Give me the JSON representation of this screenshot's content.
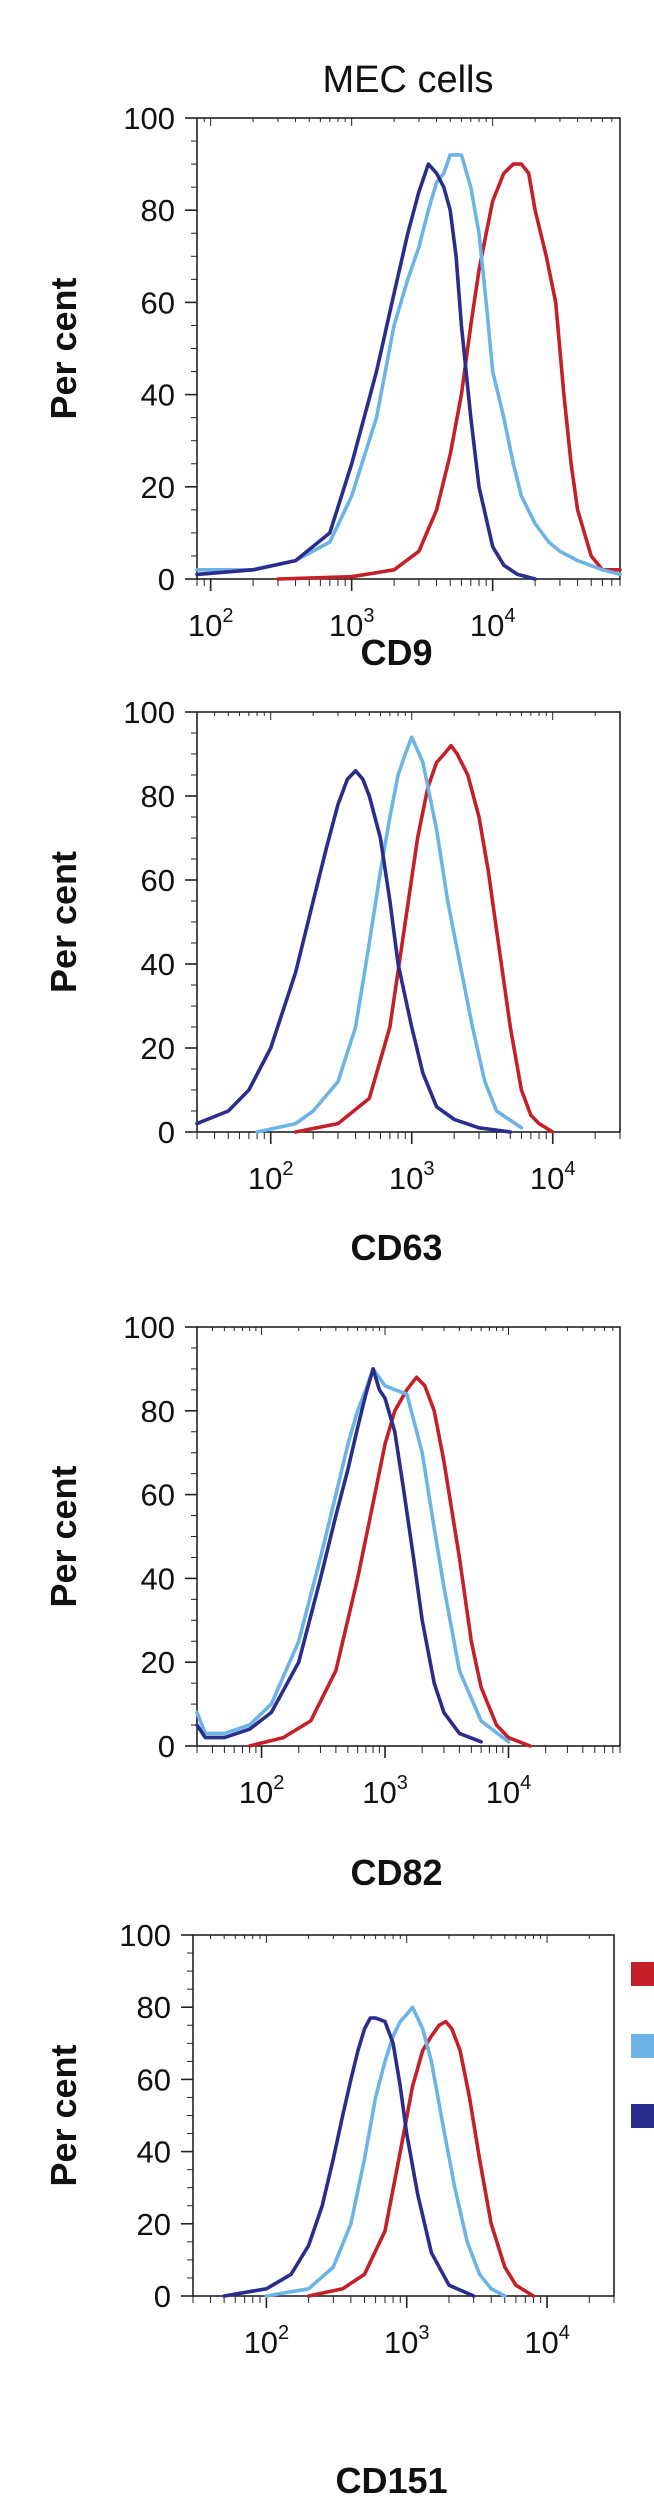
{
  "figure_title": "MEC cells",
  "colors": {
    "red": "#c3202a",
    "light_blue": "#6db4e6",
    "dark_blue": "#2a2d8c"
  },
  "chart_data": [
    {
      "type": "line",
      "xlabel": "CD9",
      "ylabel": "Per cent",
      "x_scale": "log",
      "xlim": [
        80,
        80000
      ],
      "ylim": [
        0,
        100
      ],
      "y_ticks": [
        "0",
        "20",
        "40",
        "60",
        "80",
        "100"
      ],
      "x_ticks": [
        {
          "base": "10",
          "exp": "2",
          "value": 100
        },
        {
          "base": "10",
          "exp": "3",
          "value": 1000
        },
        {
          "base": "10",
          "exp": "4",
          "value": 10000
        }
      ],
      "grid": false,
      "series": [
        {
          "color": "red",
          "x": [
            300,
            1000,
            2000,
            3000,
            4000,
            5000,
            6000,
            7000,
            8000,
            9000,
            10000,
            12000,
            14000,
            16000,
            18000,
            20000,
            24000,
            28000,
            32000,
            36000,
            40000,
            50000,
            60000,
            80000
          ],
          "values": [
            0,
            0.5,
            2,
            6,
            15,
            27,
            40,
            55,
            67,
            75,
            82,
            88,
            90,
            90,
            88,
            80,
            70,
            60,
            40,
            25,
            15,
            5,
            2,
            2
          ]
        },
        {
          "color": "light_blue",
          "x": [
            80,
            200,
            400,
            700,
            1000,
            1500,
            2000,
            2500,
            3000,
            3500,
            4000,
            4500,
            5000,
            6000,
            7000,
            8000,
            9000,
            10000,
            12000,
            14000,
            16000,
            20000,
            25000,
            30000,
            40000,
            60000,
            80000
          ],
          "values": [
            2,
            2,
            4,
            8,
            18,
            35,
            55,
            65,
            72,
            80,
            86,
            88,
            92,
            92,
            85,
            75,
            60,
            45,
            35,
            25,
            18,
            12,
            8,
            6,
            4,
            2,
            1
          ]
        },
        {
          "color": "dark_blue",
          "x": [
            80,
            200,
            400,
            700,
            1000,
            1500,
            2000,
            2500,
            3000,
            3500,
            4000,
            4500,
            5000,
            5500,
            6000,
            7000,
            8000,
            10000,
            12000,
            15000,
            20000
          ],
          "values": [
            1,
            2,
            4,
            10,
            25,
            45,
            62,
            75,
            84,
            90,
            88,
            85,
            80,
            70,
            55,
            35,
            20,
            7,
            3,
            1,
            0
          ]
        }
      ]
    },
    {
      "type": "line",
      "xlabel": "CD63",
      "ylabel": "Per cent",
      "x_scale": "log",
      "xlim": [
        30,
        30000
      ],
      "ylim": [
        0,
        100
      ],
      "y_ticks": [
        "0",
        "20",
        "40",
        "60",
        "80",
        "100"
      ],
      "x_ticks": [
        {
          "base": "10",
          "exp": "2",
          "value": 100
        },
        {
          "base": "10",
          "exp": "3",
          "value": 1000
        },
        {
          "base": "10",
          "exp": "4",
          "value": 10000
        }
      ],
      "grid": false,
      "series": [
        {
          "color": "red",
          "x": [
            150,
            300,
            500,
            700,
            900,
            1100,
            1300,
            1500,
            1700,
            1900,
            2100,
            2500,
            3000,
            3500,
            4000,
            5000,
            6000,
            7000,
            8000,
            10000
          ],
          "values": [
            0,
            2,
            8,
            25,
            50,
            70,
            82,
            88,
            90,
            92,
            90,
            85,
            75,
            62,
            48,
            25,
            10,
            4,
            2,
            0
          ]
        },
        {
          "color": "light_blue",
          "x": [
            80,
            150,
            200,
            300,
            400,
            500,
            600,
            700,
            800,
            900,
            1000,
            1200,
            1500,
            1800,
            2200,
            2700,
            3300,
            4000,
            6000
          ],
          "values": [
            0,
            2,
            5,
            12,
            25,
            45,
            62,
            75,
            85,
            90,
            94,
            88,
            72,
            55,
            40,
            25,
            12,
            5,
            1
          ]
        },
        {
          "color": "dark_blue",
          "x": [
            30,
            50,
            70,
            100,
            150,
            200,
            250,
            300,
            350,
            400,
            450,
            500,
            600,
            700,
            800,
            1000,
            1200,
            1500,
            2000,
            3000,
            5000
          ],
          "values": [
            2,
            5,
            10,
            20,
            38,
            55,
            68,
            78,
            84,
            86,
            84,
            80,
            70,
            55,
            40,
            25,
            14,
            6,
            3,
            1,
            0
          ]
        }
      ]
    },
    {
      "type": "line",
      "xlabel": "CD82",
      "ylabel": "Per cent",
      "x_scale": "log",
      "xlim": [
        30,
        80000
      ],
      "ylim": [
        0,
        100
      ],
      "y_ticks": [
        "0",
        "20",
        "40",
        "60",
        "80",
        "100"
      ],
      "x_ticks": [
        {
          "base": "10",
          "exp": "2",
          "value": 100
        },
        {
          "base": "10",
          "exp": "3",
          "value": 1000
        },
        {
          "base": "10",
          "exp": "4",
          "value": 10000
        }
      ],
      "grid": false,
      "series": [
        {
          "color": "red",
          "x": [
            80,
            150,
            250,
            400,
            600,
            800,
            1000,
            1200,
            1500,
            1800,
            2100,
            2500,
            3000,
            4000,
            5000,
            6000,
            8000,
            10000,
            15000
          ],
          "values": [
            0,
            2,
            6,
            18,
            40,
            58,
            72,
            80,
            85,
            88,
            86,
            80,
            68,
            45,
            25,
            14,
            5,
            2,
            0
          ]
        },
        {
          "color": "light_blue",
          "x": [
            30,
            35,
            50,
            80,
            120,
            200,
            300,
            400,
            500,
            600,
            700,
            800,
            1000,
            1200,
            1500,
            2000,
            2500,
            3000,
            4000,
            6000,
            10000
          ],
          "values": [
            8,
            3,
            3,
            5,
            10,
            25,
            45,
            60,
            72,
            80,
            85,
            90,
            86,
            85,
            84,
            70,
            52,
            38,
            18,
            6,
            1
          ]
        },
        {
          "color": "dark_blue",
          "x": [
            30,
            35,
            50,
            80,
            120,
            200,
            300,
            400,
            500,
            600,
            700,
            800,
            900,
            1000,
            1200,
            1400,
            1700,
            2000,
            2500,
            3000,
            4000,
            6000
          ],
          "values": [
            5,
            2,
            2,
            4,
            8,
            20,
            40,
            55,
            66,
            76,
            84,
            90,
            85,
            83,
            75,
            62,
            45,
            30,
            15,
            8,
            3,
            1
          ]
        }
      ]
    },
    {
      "type": "line",
      "xlabel": "CD151",
      "ylabel": "Per cent",
      "x_scale": "log",
      "xlim": [
        30,
        30000
      ],
      "ylim": [
        0,
        100
      ],
      "y_ticks": [
        "0",
        "20",
        "40",
        "60",
        "80",
        "100"
      ],
      "x_ticks": [
        {
          "base": "10",
          "exp": "2",
          "value": 100
        },
        {
          "base": "10",
          "exp": "3",
          "value": 1000
        },
        {
          "base": "10",
          "exp": "4",
          "value": 10000
        }
      ],
      "grid": false,
      "legend": {
        "position": "right",
        "entries": [
          {
            "color": "red",
            "label": ""
          },
          {
            "color": "light_blue",
            "label": ""
          },
          {
            "color": "dark_blue",
            "label": ""
          }
        ]
      },
      "series": [
        {
          "color": "red",
          "x": [
            200,
            350,
            500,
            700,
            900,
            1100,
            1300,
            1500,
            1700,
            1900,
            2100,
            2400,
            2800,
            3300,
            4000,
            5000,
            6000,
            8000
          ],
          "values": [
            0,
            2,
            6,
            18,
            40,
            58,
            68,
            72,
            75,
            76,
            74,
            68,
            55,
            38,
            20,
            8,
            3,
            0
          ]
        },
        {
          "color": "light_blue",
          "x": [
            100,
            200,
            300,
            400,
            500,
            600,
            700,
            800,
            900,
            1000,
            1100,
            1300,
            1500,
            1800,
            2200,
            2700,
            3300,
            4000,
            5000
          ],
          "values": [
            0,
            2,
            8,
            20,
            38,
            55,
            65,
            72,
            76,
            78,
            80,
            74,
            65,
            48,
            30,
            15,
            6,
            2,
            0
          ]
        },
        {
          "color": "dark_blue",
          "x": [
            50,
            100,
            150,
            200,
            250,
            300,
            350,
            400,
            450,
            500,
            550,
            600,
            700,
            800,
            900,
            1000,
            1200,
            1500,
            2000,
            3000
          ],
          "values": [
            0,
            2,
            6,
            14,
            25,
            38,
            50,
            60,
            68,
            74,
            77,
            77,
            76,
            70,
            58,
            45,
            28,
            12,
            3,
            0
          ]
        }
      ]
    }
  ]
}
